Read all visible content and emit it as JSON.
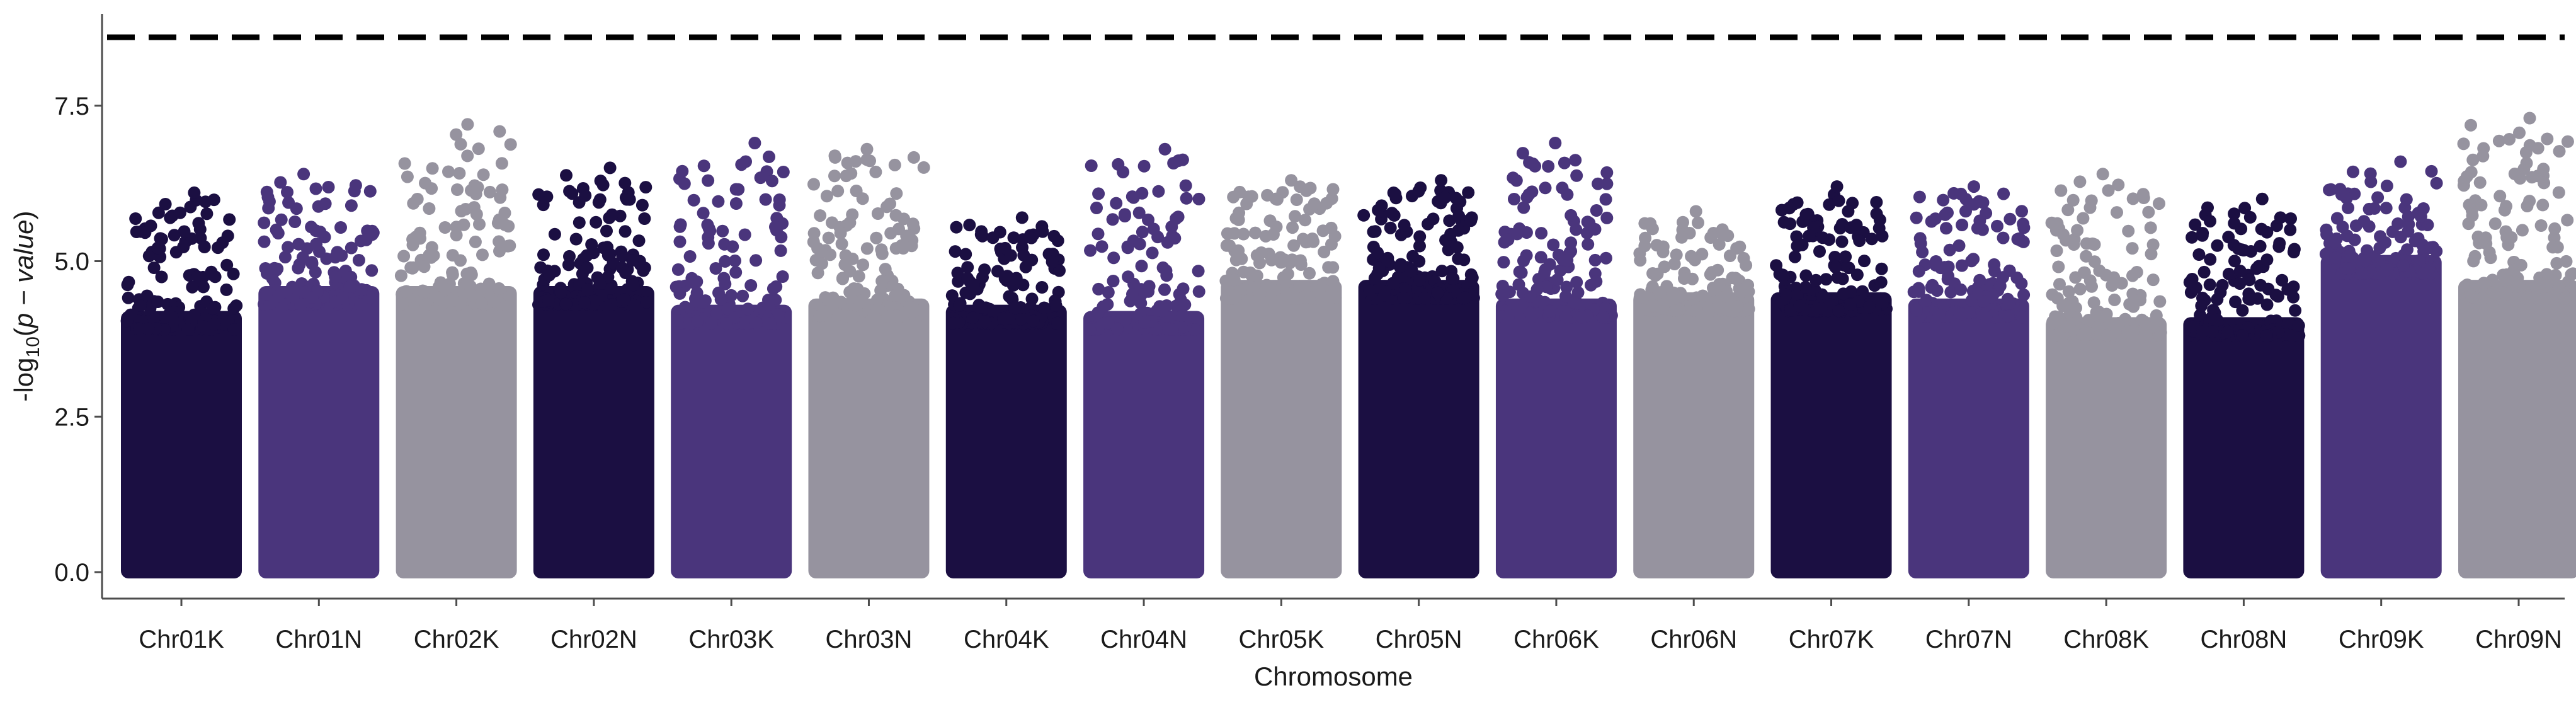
{
  "chart_data": {
    "type": "scatter",
    "subtype": "manhattan",
    "title": "",
    "xlabel": "Chromosome",
    "ylabel": {
      "prefix": "-log",
      "subscript": "10",
      "open": "(",
      "italic": "p − value",
      "close": ")"
    },
    "ylim": [
      0,
      8.6
    ],
    "yticks": [
      0.0,
      2.5,
      5.0,
      7.5
    ],
    "ytick_labels": [
      "0.0",
      "2.5",
      "5.0",
      "7.5"
    ],
    "threshold": 8.6,
    "threshold_style": "dashed",
    "grid": false,
    "legend": "none",
    "colors": [
      "#1b0f42",
      "#4a357c",
      "#96939f"
    ],
    "chromosomes": [
      {
        "name": "Chr01K",
        "color": "#1b0f42",
        "dense_top": 4.2,
        "max": 6.1
      },
      {
        "name": "Chr01N",
        "color": "#4a357c",
        "dense_top": 4.6,
        "max": 6.4
      },
      {
        "name": "Chr02K",
        "color": "#96939f",
        "dense_top": 4.6,
        "max": 7.2
      },
      {
        "name": "Chr02N",
        "color": "#1b0f42",
        "dense_top": 4.6,
        "max": 6.5
      },
      {
        "name": "Chr03K",
        "color": "#4a357c",
        "dense_top": 4.3,
        "max": 6.9
      },
      {
        "name": "Chr03N",
        "color": "#96939f",
        "dense_top": 4.4,
        "max": 6.8
      },
      {
        "name": "Chr04K",
        "color": "#1b0f42",
        "dense_top": 4.3,
        "max": 5.7
      },
      {
        "name": "Chr04N",
        "color": "#4a357c",
        "dense_top": 4.2,
        "max": 6.8
      },
      {
        "name": "Chr05K",
        "color": "#96939f",
        "dense_top": 4.7,
        "max": 6.3
      },
      {
        "name": "Chr05N",
        "color": "#1b0f42",
        "dense_top": 4.7,
        "max": 6.3
      },
      {
        "name": "Chr06K",
        "color": "#4a357c",
        "dense_top": 4.4,
        "max": 6.9
      },
      {
        "name": "Chr06N",
        "color": "#96939f",
        "dense_top": 4.5,
        "max": 5.8
      },
      {
        "name": "Chr07K",
        "color": "#1b0f42",
        "dense_top": 4.5,
        "max": 6.2
      },
      {
        "name": "Chr07N",
        "color": "#4a357c",
        "dense_top": 4.4,
        "max": 6.2
      },
      {
        "name": "Chr08K",
        "color": "#96939f",
        "dense_top": 4.1,
        "max": 6.4
      },
      {
        "name": "Chr08N",
        "color": "#1b0f42",
        "dense_top": 4.1,
        "max": 6.0
      },
      {
        "name": "Chr09K",
        "color": "#4a357c",
        "dense_top": 5.1,
        "max": 6.6
      },
      {
        "name": "Chr09N",
        "color": "#96939f",
        "dense_top": 4.7,
        "max": 7.3
      }
    ]
  }
}
